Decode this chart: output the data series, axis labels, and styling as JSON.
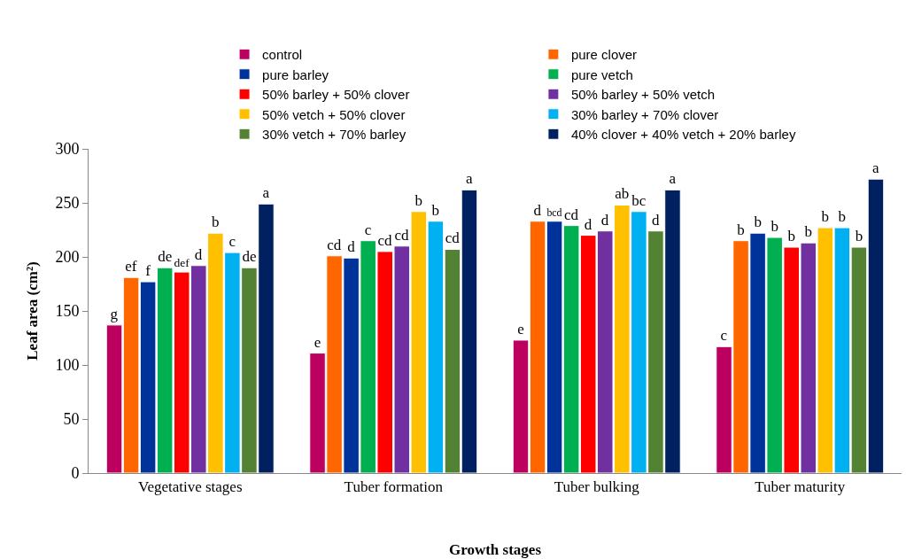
{
  "chart_data": {
    "type": "bar",
    "xlabel": "Growth stages",
    "ylabel": "Leaf area (cm²)",
    "categories": [
      "Vegetative stages",
      "Tuber formation",
      "Tuber bulking",
      "Tuber maturity"
    ],
    "ylim": [
      0,
      300
    ],
    "yticks": [
      0,
      50,
      100,
      150,
      200,
      250,
      300
    ],
    "legend": "top",
    "series": [
      {
        "name": "control",
        "color": "#bc0060",
        "values": [
          137,
          111,
          123,
          117
        ],
        "value_labels": [
          "g",
          "e",
          "e",
          "c"
        ]
      },
      {
        "name": "pure clover",
        "color": "#ff6600",
        "values": [
          181,
          201,
          233,
          215
        ],
        "value_labels": [
          "ef",
          "cd",
          "d",
          "b"
        ]
      },
      {
        "name": "pure barley",
        "color": "#003399",
        "values": [
          177,
          199,
          233,
          222
        ],
        "value_labels": [
          "f",
          "d",
          "bcd",
          "b"
        ]
      },
      {
        "name": "pure vetch",
        "color": "#00b050",
        "values": [
          190,
          215,
          229,
          218
        ],
        "value_labels": [
          "de",
          "c",
          "cd",
          "b"
        ]
      },
      {
        "name": "50% barley + 50% clover",
        "color": "#ff0000",
        "values": [
          186,
          205,
          220,
          209
        ],
        "value_labels": [
          "def",
          "cd",
          "d",
          "b"
        ]
      },
      {
        "name": "50% barley + 50% vetch",
        "color": "#7030a0",
        "values": [
          192,
          210,
          224,
          213
        ],
        "value_labels": [
          "d",
          "cd",
          "d",
          "b"
        ]
      },
      {
        "name": "50% vetch + 50% clover",
        "color": "#ffc000",
        "values": [
          222,
          242,
          248,
          227
        ],
        "value_labels": [
          "b",
          "b",
          "ab",
          "b"
        ]
      },
      {
        "name": "30% barley + 70% clover",
        "color": "#00b0f0",
        "values": [
          204,
          233,
          242,
          227
        ],
        "value_labels": [
          "c",
          "b",
          "bc",
          "b"
        ]
      },
      {
        "name": "30% vetch + 70% barley",
        "color": "#548235",
        "values": [
          190,
          207,
          224,
          209
        ],
        "value_labels": [
          "de",
          "cd",
          "d",
          "b"
        ]
      },
      {
        "name": "40% clover + 40% vetch + 20% barley",
        "color": "#002060",
        "values": [
          249,
          262,
          262,
          272
        ],
        "value_labels": [
          "a",
          "a",
          "a",
          "a"
        ]
      }
    ]
  }
}
